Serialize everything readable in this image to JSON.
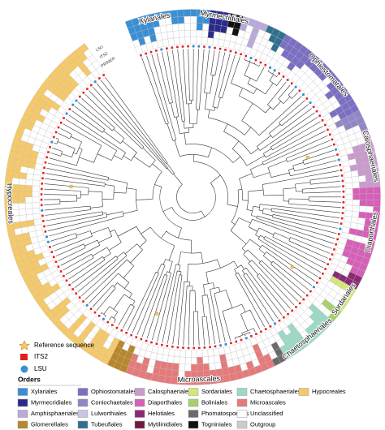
{
  "order_labels": [
    "Xylariales",
    "Myrmecridiales",
    "Ophiostomatales",
    "Calosphaeriales",
    "Diaporthales",
    "Sordariales",
    "Chaetosphaeriales",
    "Microascales",
    "Hypocreales"
  ],
  "ring_labels": [
    "PRIMER",
    "ITS2",
    "LSU"
  ],
  "legend": {
    "reference": "Reference sequence",
    "its2": "ITS2",
    "lsu": "LSU",
    "orders_title": "Orders",
    "orders": [
      {
        "name": "Xylariales",
        "color": "#3a8fd4"
      },
      {
        "name": "Myrmecridiales",
        "color": "#2b2a8a"
      },
      {
        "name": "Amphisphaeriales",
        "color": "#b9a9d9"
      },
      {
        "name": "Glomerellales",
        "color": "#b8862b"
      },
      {
        "name": "Ophiostomatales",
        "color": "#7b6fc4"
      },
      {
        "name": "Coniochaetales",
        "color": "#9186c6"
      },
      {
        "name": "Lulworthiales",
        "color": "#cbc4e6"
      },
      {
        "name": "Tubeufiales",
        "color": "#2f6f8f"
      },
      {
        "name": "Calosphaeriales",
        "color": "#c89bcc"
      },
      {
        "name": "Diaporthales",
        "color": "#d65fb8"
      },
      {
        "name": "Helotiales",
        "color": "#8a2a75"
      },
      {
        "name": "Mytilinidiales",
        "color": "#6b1a40"
      },
      {
        "name": "Sordariales",
        "color": "#d5e67a"
      },
      {
        "name": "Boliniales",
        "color": "#a7d06e"
      },
      {
        "name": "Phomatosporales",
        "color": "#6a6a6a"
      },
      {
        "name": "Togniniales",
        "color": "#111111"
      },
      {
        "name": "Chaetosphaeriales",
        "color": "#9bd9c6"
      },
      {
        "name": "Microascales",
        "color": "#e67a7a"
      },
      {
        "name": "Unclassified",
        "color": "#ffffff"
      },
      {
        "name": "Outgroup",
        "color": "#cccccc"
      },
      {
        "name": "Hypocreales",
        "color": "#f5c96a"
      }
    ]
  }
}
